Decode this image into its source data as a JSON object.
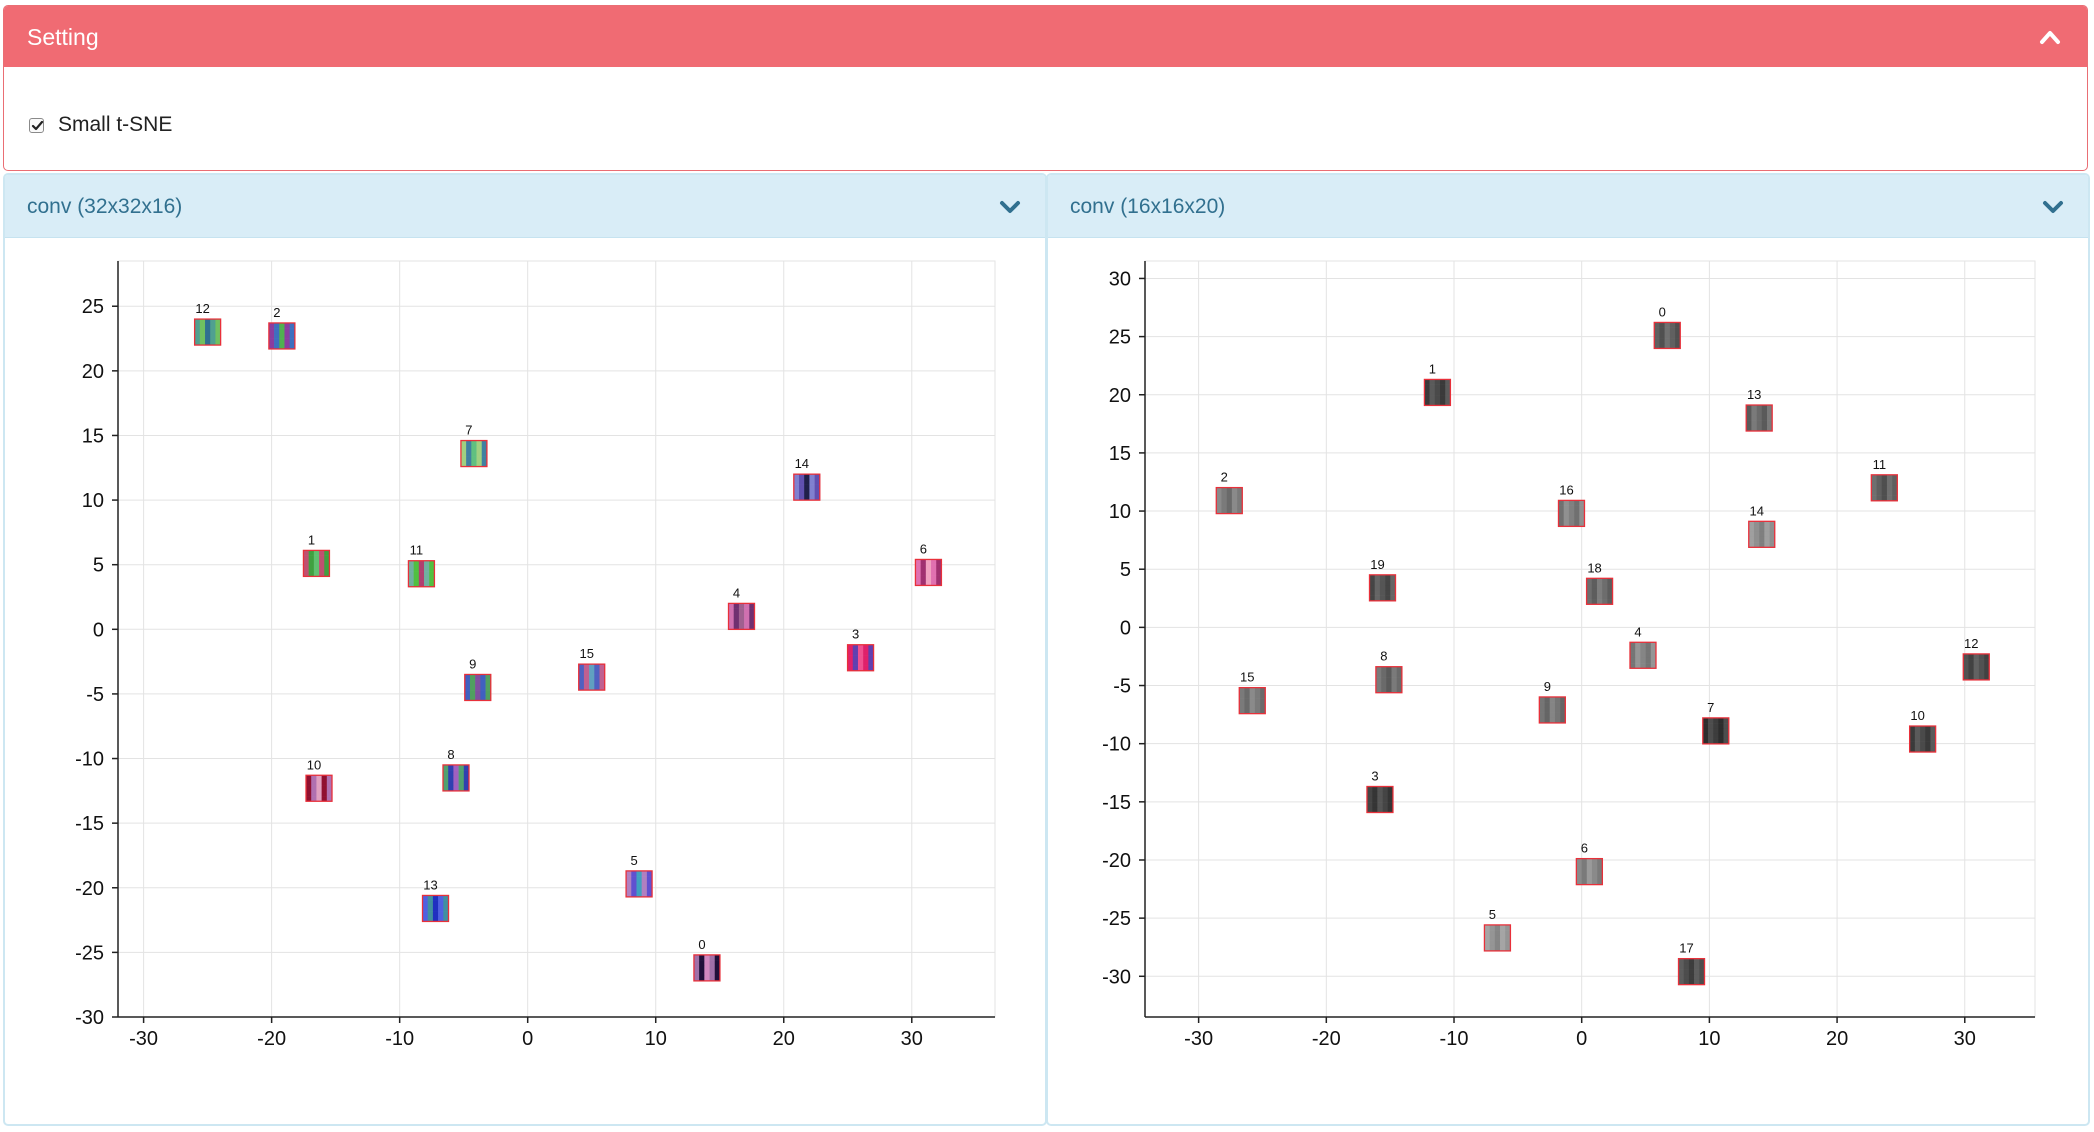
{
  "setting": {
    "title": "Setting",
    "collapse_icon": "chevron-up-icon",
    "small_tsne": {
      "label": "Small t-SNE",
      "checked": true
    }
  },
  "panels": [
    {
      "title": "conv (32x32x16)",
      "expand_icon": "chevron-down-icon"
    },
    {
      "title": "conv (16x16x20)",
      "expand_icon": "chevron-down-icon"
    }
  ],
  "chart_data": [
    {
      "type": "scatter",
      "title": "",
      "xlabel": "",
      "ylabel": "",
      "xlim": [
        -32,
        36.5
      ],
      "ylim": [
        -30,
        28.5
      ],
      "xticks": [
        -30,
        -20,
        -10,
        0,
        10,
        20,
        30
      ],
      "yticks": [
        25,
        20,
        15,
        10,
        5,
        0,
        -5,
        -10,
        -15,
        -20,
        -25,
        -30
      ],
      "grid": true,
      "marker": "color-image-thumbnail",
      "points": [
        {
          "label": "0",
          "x": 14,
          "y": -26.2,
          "colors": [
            "#a070a8",
            "#20103a",
            "#d088c0"
          ]
        },
        {
          "label": "1",
          "x": -16.5,
          "y": 5.1,
          "colors": [
            "#60c070",
            "#c05070",
            "#40a040"
          ]
        },
        {
          "label": "2",
          "x": -19.2,
          "y": 22.7,
          "colors": [
            "#3d6fbf",
            "#50b050",
            "#8a3da0"
          ]
        },
        {
          "label": "3",
          "x": 26,
          "y": -2.2,
          "colors": [
            "#e0206a",
            "#6040b0",
            "#f05090"
          ]
        },
        {
          "label": "4",
          "x": 16.7,
          "y": 1.0,
          "colors": [
            "#a06090",
            "#d070b0",
            "#703070"
          ]
        },
        {
          "label": "5",
          "x": 8.7,
          "y": -19.7,
          "colors": [
            "#6050d0",
            "#40a0c0",
            "#b080c0"
          ]
        },
        {
          "label": "6",
          "x": 31.3,
          "y": 4.4,
          "colors": [
            "#e070b0",
            "#a03070",
            "#f0a0c0"
          ]
        },
        {
          "label": "7",
          "x": -4.2,
          "y": 13.6,
          "colors": [
            "#60c080",
            "#a0d080",
            "#4080a0"
          ]
        },
        {
          "label": "8",
          "x": -5.6,
          "y": -11.5,
          "colors": [
            "#3040b0",
            "#a060c0",
            "#50a070"
          ]
        },
        {
          "label": "9",
          "x": -3.9,
          "y": -4.5,
          "colors": [
            "#4060c0",
            "#50a060",
            "#8050a0"
          ]
        },
        {
          "label": "10",
          "x": -16.3,
          "y": -12.3,
          "colors": [
            "#e0a0c0",
            "#901030",
            "#b070b0"
          ]
        },
        {
          "label": "11",
          "x": -8.3,
          "y": 4.3,
          "colors": [
            "#50c040",
            "#b04070",
            "#70b0a0"
          ]
        },
        {
          "label": "12",
          "x": -25,
          "y": 23.0,
          "colors": [
            "#50a090",
            "#70c060",
            "#307090"
          ]
        },
        {
          "label": "13",
          "x": -7.2,
          "y": -21.6,
          "colors": [
            "#2030c0",
            "#5060e0",
            "#4090a0"
          ]
        },
        {
          "label": "14",
          "x": 21.8,
          "y": 11.0,
          "colors": [
            "#6050b0",
            "#20204a",
            "#8080d0"
          ]
        },
        {
          "label": "15",
          "x": 5,
          "y": -3.7,
          "colors": [
            "#5060c0",
            "#c06090",
            "#60a0c0"
          ]
        }
      ]
    },
    {
      "type": "scatter",
      "title": "",
      "xlabel": "",
      "ylabel": "",
      "xlim": [
        -34.2,
        35.5
      ],
      "ylim": [
        -33.5,
        31.5
      ],
      "xticks": [
        -30,
        -20,
        -10,
        0,
        10,
        20,
        30
      ],
      "yticks": [
        30,
        25,
        20,
        15,
        10,
        5,
        0,
        -5,
        -10,
        -15,
        -20,
        -25,
        -30
      ],
      "grid": true,
      "marker": "grayscale-image-thumbnail",
      "points": [
        {
          "label": "0",
          "x": 6.7,
          "y": 25.1,
          "colors": [
            "#606060",
            "#505050",
            "#707070"
          ]
        },
        {
          "label": "1",
          "x": -11.3,
          "y": 20.2,
          "colors": [
            "#4a4a4a",
            "#3a3a3a",
            "#5a5a5a"
          ]
        },
        {
          "label": "2",
          "x": -27.6,
          "y": 10.9,
          "colors": [
            "#7a7a7a",
            "#6a6a6a",
            "#8a8a8a"
          ]
        },
        {
          "label": "3",
          "x": -15.8,
          "y": -14.8,
          "colors": [
            "#454545",
            "#353535",
            "#555555"
          ]
        },
        {
          "label": "4",
          "x": 4.8,
          "y": -2.4,
          "colors": [
            "#858585",
            "#757575",
            "#959595"
          ]
        },
        {
          "label": "5",
          "x": -6.6,
          "y": -26.7,
          "colors": [
            "#959595",
            "#858585",
            "#a5a5a5"
          ]
        },
        {
          "label": "6",
          "x": 0.6,
          "y": -21.0,
          "colors": [
            "#8a8a8a",
            "#7a7a7a",
            "#9a9a9a"
          ]
        },
        {
          "label": "7",
          "x": 10.5,
          "y": -8.9,
          "colors": [
            "#3d3d3d",
            "#2d2d2d",
            "#4d4d4d"
          ]
        },
        {
          "label": "8",
          "x": -15.1,
          "y": -4.5,
          "colors": [
            "#6a6a6a",
            "#5a5a5a",
            "#7a7a7a"
          ]
        },
        {
          "label": "9",
          "x": -2.3,
          "y": -7.1,
          "colors": [
            "#757575",
            "#656565",
            "#858585"
          ]
        },
        {
          "label": "10",
          "x": 26.7,
          "y": -9.6,
          "colors": [
            "#4a4a4a",
            "#3a3a3a",
            "#5a5a5a"
          ]
        },
        {
          "label": "11",
          "x": 23.7,
          "y": 12.0,
          "colors": [
            "#5f5f5f",
            "#4f4f4f",
            "#6f6f6f"
          ]
        },
        {
          "label": "12",
          "x": 30.9,
          "y": -3.4,
          "colors": [
            "#525252",
            "#424242",
            "#626262"
          ]
        },
        {
          "label": "13",
          "x": 13.9,
          "y": 18.0,
          "colors": [
            "#6a6a6a",
            "#5a5a5a",
            "#7a7a7a"
          ]
        },
        {
          "label": "14",
          "x": 14.1,
          "y": 8.0,
          "colors": [
            "#8f8f8f",
            "#7f7f7f",
            "#9f9f9f"
          ]
        },
        {
          "label": "15",
          "x": -25.8,
          "y": -6.3,
          "colors": [
            "#7a7a7a",
            "#6a6a6a",
            "#8a8a8a"
          ]
        },
        {
          "label": "16",
          "x": -0.8,
          "y": 9.8,
          "colors": [
            "#808080",
            "#707070",
            "#909090"
          ]
        },
        {
          "label": "17",
          "x": 8.6,
          "y": -29.6,
          "colors": [
            "#4d4d4d",
            "#3d3d3d",
            "#5d5d5d"
          ]
        },
        {
          "label": "18",
          "x": 1.4,
          "y": 3.1,
          "colors": [
            "#6d6d6d",
            "#5d5d5d",
            "#7d7d7d"
          ]
        },
        {
          "label": "19",
          "x": -15.6,
          "y": 3.4,
          "colors": [
            "#555555",
            "#454545",
            "#656565"
          ]
        }
      ]
    }
  ]
}
